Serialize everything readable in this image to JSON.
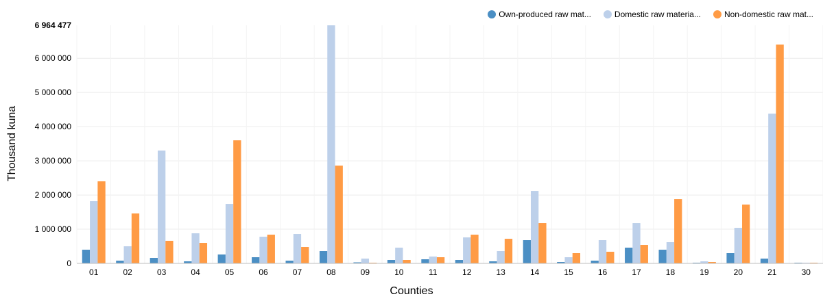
{
  "chart_data": {
    "type": "bar",
    "xlabel": "Counties",
    "ylabel": "Thousand kuna",
    "ylim": [
      0,
      6964477
    ],
    "y_max_label": "6 964 477",
    "y_ticks": [
      0,
      1000000,
      2000000,
      3000000,
      4000000,
      5000000,
      6000000
    ],
    "y_tick_labels": [
      "0",
      "1 000 000",
      "2 000 000",
      "3 000 000",
      "4 000 000",
      "5 000 000",
      "6 000 000"
    ],
    "grid": true,
    "legend_position": "top-right",
    "categories": [
      "01",
      "02",
      "03",
      "04",
      "05",
      "06",
      "07",
      "08",
      "09",
      "10",
      "11",
      "12",
      "13",
      "14",
      "15",
      "16",
      "17",
      "18",
      "19",
      "20",
      "21",
      "30"
    ],
    "series": [
      {
        "name": "Own-produced raw mat...",
        "color": "#4b8fc4",
        "values": [
          400000,
          80000,
          160000,
          60000,
          260000,
          180000,
          80000,
          360000,
          30000,
          100000,
          120000,
          100000,
          60000,
          680000,
          40000,
          80000,
          460000,
          400000,
          20000,
          300000,
          140000,
          20000
        ]
      },
      {
        "name": "Domestic raw materia...",
        "color": "#bdd0ea",
        "values": [
          1820000,
          500000,
          3300000,
          880000,
          1740000,
          780000,
          860000,
          6964477,
          140000,
          460000,
          200000,
          760000,
          360000,
          2120000,
          180000,
          680000,
          1180000,
          620000,
          60000,
          1040000,
          4380000,
          20000
        ]
      },
      {
        "name": "Non-domestic raw mat...",
        "color": "#ff9b45",
        "values": [
          2400000,
          1460000,
          660000,
          600000,
          3600000,
          840000,
          480000,
          2860000,
          20000,
          100000,
          180000,
          840000,
          720000,
          1180000,
          300000,
          340000,
          540000,
          1880000,
          40000,
          1720000,
          6400000,
          20000
        ]
      }
    ]
  }
}
